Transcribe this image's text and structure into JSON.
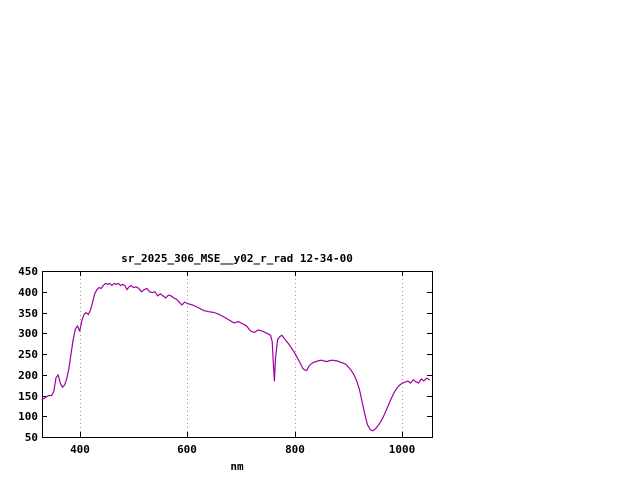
{
  "chart_data": {
    "type": "line",
    "title": "sr_2025_306_MSE__y02_r_rad 12-34-00",
    "xlabel": "nm",
    "ylabel": "",
    "xlim": [
      330,
      1055
    ],
    "ylim": [
      50,
      450
    ],
    "xticks": [
      400,
      600,
      800,
      1000
    ],
    "yticks": [
      50,
      100,
      150,
      200,
      250,
      300,
      350,
      400,
      450
    ],
    "grid": "vertical-dotted",
    "legend_position": "none",
    "line_color": "#a000a0",
    "grid_color": "#9a9a9a",
    "border_color": "#000000",
    "series": [
      {
        "name": "sr_2025_306_MSE__y02_r_rad",
        "x": [
          330,
          336,
          342,
          348,
          352,
          356,
          360,
          364,
          368,
          372,
          376,
          380,
          384,
          388,
          392,
          396,
          400,
          404,
          408,
          412,
          416,
          420,
          424,
          428,
          432,
          436,
          440,
          444,
          448,
          452,
          456,
          460,
          464,
          468,
          472,
          476,
          480,
          484,
          488,
          492,
          496,
          500,
          505,
          510,
          515,
          520,
          525,
          530,
          535,
          540,
          545,
          550,
          555,
          560,
          565,
          570,
          575,
          580,
          585,
          590,
          595,
          600,
          610,
          620,
          630,
          640,
          650,
          660,
          670,
          680,
          687,
          695,
          700,
          710,
          718,
          725,
          732,
          740,
          748,
          755,
          758,
          760,
          762,
          764,
          768,
          772,
          776,
          780,
          785,
          790,
          795,
          800,
          805,
          810,
          815,
          818,
          822,
          826,
          830,
          835,
          840,
          845,
          850,
          855,
          860,
          865,
          870,
          875,
          880,
          885,
          890,
          895,
          900,
          905,
          910,
          915,
          920,
          925,
          930,
          935,
          940,
          945,
          950,
          955,
          960,
          965,
          970,
          975,
          980,
          985,
          990,
          995,
          1000,
          1005,
          1010,
          1015,
          1020,
          1025,
          1030,
          1035,
          1040,
          1045,
          1050
        ],
        "y": [
          140,
          145,
          150,
          150,
          160,
          193,
          200,
          180,
          170,
          175,
          190,
          215,
          250,
          285,
          310,
          318,
          305,
          330,
          345,
          350,
          345,
          355,
          375,
          395,
          405,
          410,
          408,
          415,
          420,
          418,
          420,
          415,
          420,
          418,
          420,
          415,
          418,
          415,
          405,
          412,
          415,
          410,
          412,
          408,
          400,
          405,
          408,
          400,
          398,
          400,
          390,
          395,
          390,
          385,
          392,
          390,
          385,
          382,
          375,
          368,
          375,
          372,
          368,
          362,
          355,
          352,
          350,
          345,
          338,
          330,
          325,
          328,
          325,
          318,
          305,
          302,
          308,
          305,
          300,
          295,
          280,
          230,
          185,
          240,
          285,
          292,
          295,
          288,
          280,
          272,
          262,
          252,
          240,
          228,
          215,
          212,
          210,
          220,
          226,
          230,
          232,
          234,
          235,
          233,
          232,
          234,
          235,
          234,
          233,
          230,
          228,
          225,
          218,
          210,
          200,
          185,
          165,
          135,
          105,
          80,
          68,
          65,
          70,
          78,
          88,
          100,
          115,
          130,
          145,
          158,
          168,
          175,
          180,
          182,
          185,
          180,
          188,
          183,
          180,
          190,
          185,
          192,
          188
        ]
      }
    ]
  }
}
